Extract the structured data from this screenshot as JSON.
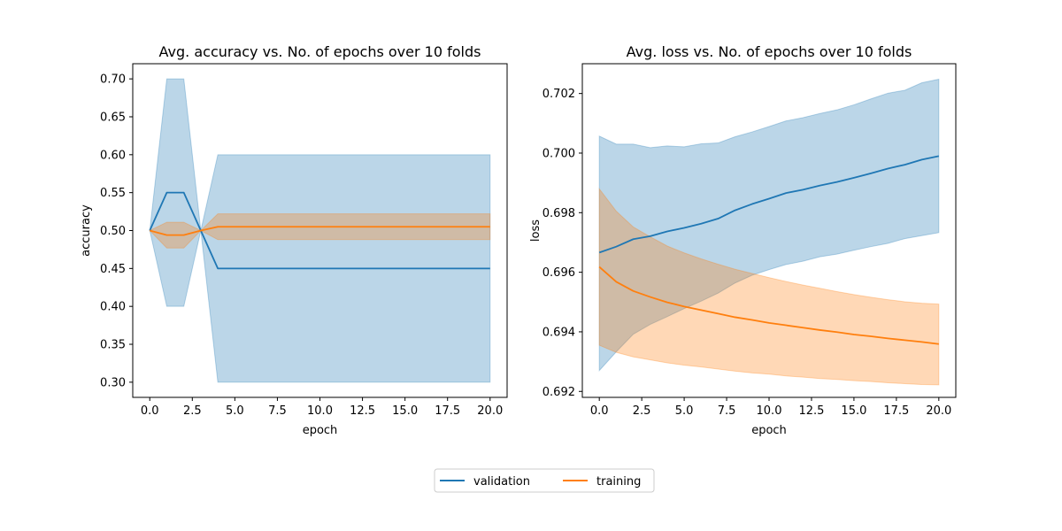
{
  "chart_data": [
    {
      "type": "line",
      "title": "Avg. accuracy vs. No. of epochs over 10 folds",
      "xlabel": "epoch",
      "ylabel": "accuracy",
      "xlim": [
        -1,
        21
      ],
      "ylim": [
        0.28,
        0.72
      ],
      "xticks": [
        "0.0",
        "2.5",
        "5.0",
        "7.5",
        "10.0",
        "12.5",
        "15.0",
        "17.5",
        "20.0"
      ],
      "yticks": [
        "0.30",
        "0.35",
        "0.40",
        "0.45",
        "0.50",
        "0.55",
        "0.60",
        "0.65",
        "0.70"
      ],
      "grid": false,
      "x": [
        0,
        1,
        2,
        3,
        4,
        5,
        6,
        7,
        8,
        9,
        10,
        11,
        12,
        13,
        14,
        15,
        16,
        17,
        18,
        19,
        20
      ],
      "series": [
        {
          "name": "validation",
          "color": "#1f77b4",
          "values": [
            0.5,
            0.55,
            0.55,
            0.5,
            0.45,
            0.45,
            0.45,
            0.45,
            0.45,
            0.45,
            0.45,
            0.45,
            0.45,
            0.45,
            0.45,
            0.45,
            0.45,
            0.45,
            0.45,
            0.45,
            0.45
          ],
          "band_upper": [
            0.5,
            0.7,
            0.7,
            0.5,
            0.6,
            0.6,
            0.6,
            0.6,
            0.6,
            0.6,
            0.6,
            0.6,
            0.6,
            0.6,
            0.6,
            0.6,
            0.6,
            0.6,
            0.6,
            0.6,
            0.6
          ],
          "band_lower": [
            0.5,
            0.4,
            0.4,
            0.5,
            0.3,
            0.3,
            0.3,
            0.3,
            0.3,
            0.3,
            0.3,
            0.3,
            0.3,
            0.3,
            0.3,
            0.3,
            0.3,
            0.3,
            0.3,
            0.3,
            0.3
          ]
        },
        {
          "name": "training",
          "color": "#ff7f0e",
          "values": [
            0.5,
            0.494,
            0.494,
            0.5,
            0.505,
            0.505,
            0.505,
            0.505,
            0.505,
            0.505,
            0.505,
            0.505,
            0.505,
            0.505,
            0.505,
            0.505,
            0.505,
            0.505,
            0.505,
            0.505,
            0.505
          ],
          "band_upper": [
            0.5,
            0.511,
            0.511,
            0.5,
            0.522,
            0.522,
            0.522,
            0.522,
            0.522,
            0.522,
            0.522,
            0.522,
            0.522,
            0.522,
            0.522,
            0.522,
            0.522,
            0.522,
            0.522,
            0.522,
            0.522
          ],
          "band_lower": [
            0.5,
            0.477,
            0.477,
            0.5,
            0.488,
            0.488,
            0.488,
            0.488,
            0.488,
            0.488,
            0.488,
            0.488,
            0.488,
            0.488,
            0.488,
            0.488,
            0.488,
            0.488,
            0.488,
            0.488,
            0.488
          ]
        }
      ]
    },
    {
      "type": "line",
      "title": "Avg. loss vs. No. of epochs over 10 folds",
      "xlabel": "epoch",
      "ylabel": "loss",
      "xlim": [
        -1,
        21
      ],
      "ylim": [
        0.6918,
        0.703
      ],
      "xticks": [
        "0.0",
        "2.5",
        "5.0",
        "7.5",
        "10.0",
        "12.5",
        "15.0",
        "17.5",
        "20.0"
      ],
      "yticks": [
        "0.692",
        "0.694",
        "0.696",
        "0.698",
        "0.700",
        "0.702"
      ],
      "grid": false,
      "x": [
        0,
        1,
        2,
        3,
        4,
        5,
        6,
        7,
        8,
        9,
        10,
        11,
        12,
        13,
        14,
        15,
        16,
        17,
        18,
        19,
        20
      ],
      "series": [
        {
          "name": "validation",
          "color": "#1f77b4",
          "values": [
            0.69666,
            0.69686,
            0.69711,
            0.69721,
            0.69737,
            0.69749,
            0.69763,
            0.6978,
            0.69808,
            0.69829,
            0.69847,
            0.69866,
            0.69877,
            0.69891,
            0.69903,
            0.69917,
            0.69932,
            0.69948,
            0.69961,
            0.69978,
            0.6999
          ],
          "band_upper": [
            0.70057,
            0.7003,
            0.7003,
            0.70018,
            0.70024,
            0.70021,
            0.70031,
            0.70034,
            0.70055,
            0.70071,
            0.70089,
            0.70108,
            0.70119,
            0.70133,
            0.70145,
            0.70162,
            0.70182,
            0.70201,
            0.70211,
            0.70236,
            0.70248
          ],
          "band_lower": [
            0.6927,
            0.69333,
            0.69392,
            0.69425,
            0.69451,
            0.69478,
            0.69503,
            0.6953,
            0.69564,
            0.6959,
            0.69609,
            0.69626,
            0.69637,
            0.69652,
            0.69661,
            0.69674,
            0.69686,
            0.69697,
            0.69713,
            0.69723,
            0.69733
          ]
        },
        {
          "name": "training",
          "color": "#ff7f0e",
          "values": [
            0.69618,
            0.69568,
            0.69537,
            0.69517,
            0.69499,
            0.69485,
            0.69473,
            0.69461,
            0.69449,
            0.6944,
            0.6943,
            0.69422,
            0.69414,
            0.69406,
            0.69399,
            0.69391,
            0.69385,
            0.69378,
            0.69372,
            0.69366,
            0.69359
          ],
          "band_upper": [
            0.6988,
            0.69805,
            0.69752,
            0.69719,
            0.69688,
            0.69665,
            0.69645,
            0.69627,
            0.6961,
            0.69596,
            0.69582,
            0.69569,
            0.69557,
            0.69546,
            0.69535,
            0.69525,
            0.69516,
            0.69508,
            0.69501,
            0.69496,
            0.69493
          ],
          "band_lower": [
            0.69355,
            0.69331,
            0.69316,
            0.69306,
            0.69296,
            0.69288,
            0.69282,
            0.69275,
            0.69268,
            0.69262,
            0.69258,
            0.69252,
            0.69248,
            0.69243,
            0.6924,
            0.69236,
            0.69233,
            0.69229,
            0.69226,
            0.69223,
            0.69222
          ]
        }
      ]
    }
  ],
  "legend": {
    "placement": "bottom-center",
    "entries": [
      {
        "label": "validation",
        "color": "#1f77b4"
      },
      {
        "label": "training",
        "color": "#ff7f0e"
      }
    ]
  }
}
